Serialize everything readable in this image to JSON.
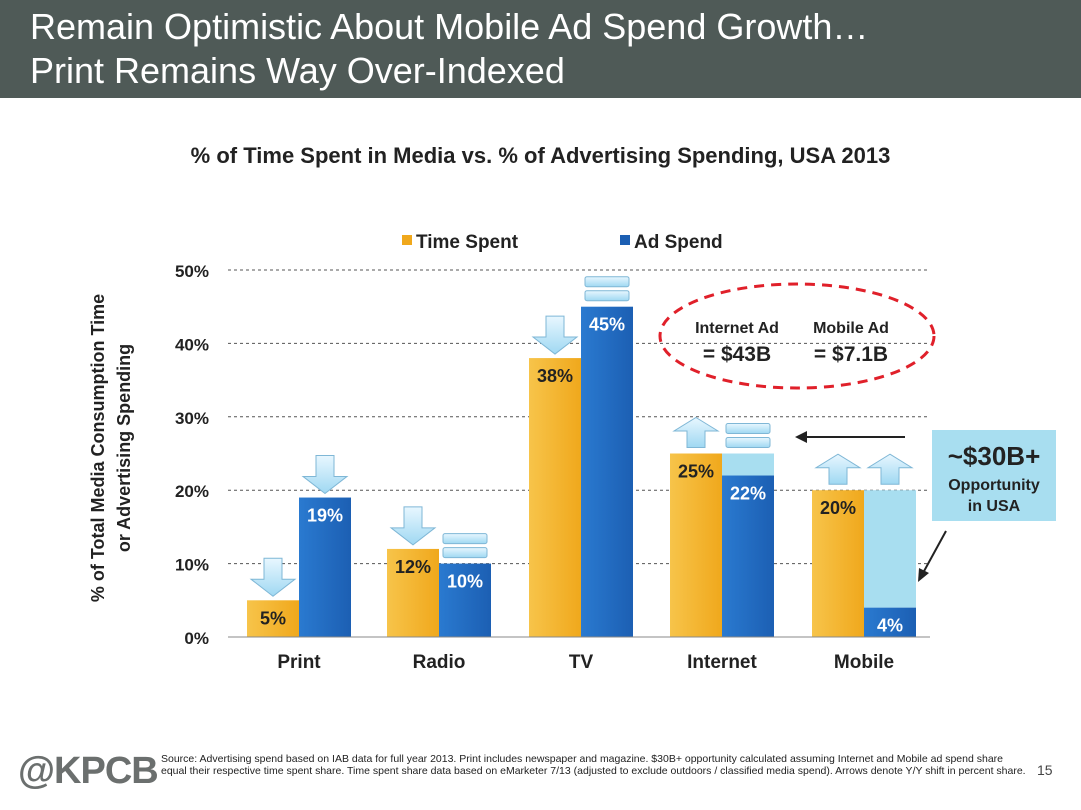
{
  "slide": {
    "title_line1": "Remain Optimistic About Mobile Ad Spend Growth…",
    "title_line2": "Print Remains Way Over-Indexed",
    "logo": "@KPCB",
    "page_number": "15",
    "source_note": "Source: Advertising spend based on IAB data for full year 2013. Print includes newspaper and magazine. $30B+ opportunity calculated assuming Internet and Mobile ad spend share equal their respective time spent share. Time spent share data based on eMarketer 7/13 (adjusted to exclude outdoors / classified media spend). Arrows denote Y/Y shift in percent share."
  },
  "colors": {
    "header_bg": "#4f5a57",
    "time_spent": "#f0a81c",
    "ad_spend": "#1c5fb3",
    "opportunity": "#a8def0",
    "callout_ellipse": "#e0202a"
  },
  "chart_data": {
    "type": "bar",
    "title": "% of Time Spent in Media vs. % of Advertising Spending, USA 2013",
    "ylabel_line1": "% of Total Media Consumption Time",
    "ylabel_line2": "or Advertising Spending",
    "ylim": [
      0,
      50
    ],
    "yticks": [
      0,
      10,
      20,
      30,
      40,
      50
    ],
    "ytick_labels": [
      "0%",
      "10%",
      "20%",
      "30%",
      "40%",
      "50%"
    ],
    "grid": true,
    "legend_position": "top-center",
    "categories": [
      "Print",
      "Radio",
      "TV",
      "Internet",
      "Mobile"
    ],
    "series": [
      {
        "name": "Time Spent",
        "values": [
          5,
          12,
          38,
          25,
          20
        ],
        "labels": [
          "5%",
          "12%",
          "38%",
          "25%",
          "20%"
        ],
        "shift_arrows": [
          "down",
          "down",
          "down",
          "up",
          "up"
        ]
      },
      {
        "name": "Ad Spend",
        "values": [
          19,
          10,
          45,
          22,
          4
        ],
        "labels": [
          "19%",
          "10%",
          "45%",
          "22%",
          "4%"
        ],
        "shift_arrows": [
          "down",
          "equal",
          "equal",
          "equal",
          "up"
        ]
      }
    ],
    "opportunity_gap": {
      "Internet": {
        "from": 22,
        "to": 25
      },
      "Mobile": {
        "from": 4,
        "to": 20
      }
    },
    "callouts": {
      "internet_ad_label": "Internet Ad",
      "internet_ad_value": "= $43B",
      "mobile_ad_label": "Mobile Ad",
      "mobile_ad_value": "= $7.1B",
      "opportunity_value": "~$30B+",
      "opportunity_line1": "Opportunity",
      "opportunity_line2": "in USA"
    }
  }
}
